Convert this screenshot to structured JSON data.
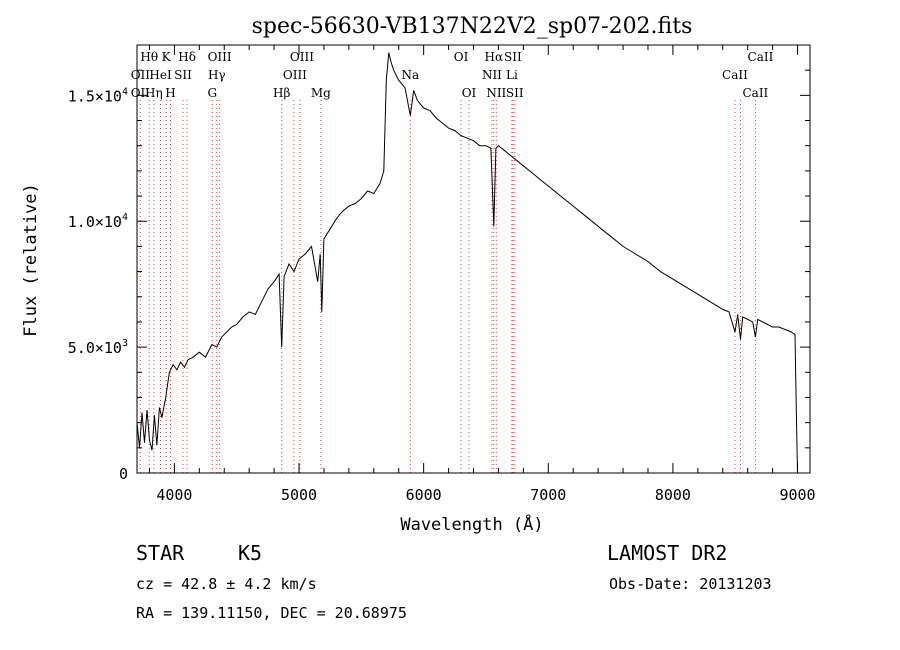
{
  "chart_data": {
    "type": "line",
    "title": "spec-56630-VB137N22V2_sp07-202.fits",
    "xlabel": "Wavelength (Å)",
    "ylabel": "Flux (relative)",
    "xlim": [
      3700,
      9100
    ],
    "ylim": [
      0,
      17000
    ],
    "x_ticks": [
      4000,
      5000,
      6000,
      7000,
      8000,
      9000
    ],
    "x_tick_labels": [
      "4000",
      "5000",
      "6000",
      "7000",
      "8000",
      "9000"
    ],
    "y_ticks": [
      0,
      5000,
      10000,
      15000
    ],
    "y_tick_labels": [
      {
        "mant": "0",
        "exp": ""
      },
      {
        "mant": "5.0×10",
        "exp": "3"
      },
      {
        "mant": "1.0×10",
        "exp": "4"
      },
      {
        "mant": "1.5×10",
        "exp": "4"
      }
    ],
    "series": [
      {
        "x": [
          3700,
          3720,
          3740,
          3760,
          3780,
          3800,
          3820,
          3840,
          3860,
          3880,
          3900,
          3930,
          3960,
          3990,
          4020,
          4050,
          4080,
          4110,
          4150,
          4200,
          4250,
          4300,
          4340,
          4380,
          4420,
          4460,
          4500,
          4550,
          4600,
          4650,
          4700,
          4750,
          4800,
          4840,
          4861,
          4880,
          4920,
          4960,
          5000,
          5050,
          5100,
          5150,
          5170,
          5183,
          5200,
          5250,
          5300,
          5350,
          5400,
          5450,
          5500,
          5550,
          5600,
          5650,
          5680,
          5700,
          5720,
          5740,
          5760,
          5800,
          5850,
          5893,
          5920,
          5950,
          6000,
          6050,
          6100,
          6150,
          6200,
          6250,
          6300,
          6350,
          6400,
          6450,
          6500,
          6540,
          6563,
          6580,
          6600,
          6650,
          6700,
          6750,
          6800,
          6850,
          6900,
          6950,
          7000,
          7100,
          7200,
          7300,
          7400,
          7500,
          7600,
          7700,
          7800,
          7900,
          8000,
          8100,
          8200,
          8300,
          8400,
          8450,
          8498,
          8520,
          8542,
          8560,
          8600,
          8640,
          8662,
          8680,
          8720,
          8760,
          8800,
          8850,
          8900,
          8950,
          8980,
          8990,
          9000
        ],
        "y": [
          2000,
          1000,
          2400,
          1200,
          2500,
          1300,
          900,
          2300,
          1100,
          2600,
          2200,
          3000,
          4000,
          4300,
          4100,
          4400,
          4200,
          4500,
          4600,
          4800,
          4600,
          5100,
          5000,
          5400,
          5600,
          5800,
          5900,
          6200,
          6400,
          6300,
          6800,
          7300,
          7600,
          7900,
          5000,
          7800,
          8300,
          8000,
          8500,
          8700,
          9000,
          7600,
          8700,
          6400,
          9300,
          9700,
          10100,
          10400,
          10600,
          10700,
          10900,
          11200,
          11100,
          11500,
          12000,
          15600,
          16700,
          16300,
          16000,
          15600,
          15300,
          14200,
          15200,
          14800,
          14500,
          14400,
          14100,
          13900,
          13700,
          13600,
          13400,
          13300,
          13200,
          13000,
          13000,
          12900,
          9800,
          12900,
          13000,
          12800,
          12600,
          12400,
          12200,
          12000,
          11800,
          11600,
          11400,
          11000,
          10600,
          10200,
          9800,
          9400,
          9000,
          8700,
          8400,
          8000,
          7700,
          7400,
          7100,
          6800,
          6500,
          6400,
          5600,
          6300,
          5300,
          6200,
          6100,
          6000,
          5400,
          6100,
          6000,
          5900,
          5800,
          5800,
          5700,
          5600,
          5500,
          2500,
          0
        ]
      }
    ],
    "lines": [
      {
        "label": "Hθ",
        "x": 3798,
        "row": 0,
        "offset": 0
      },
      {
        "label": "K",
        "x": 3934,
        "row": 0,
        "offset": 0
      },
      {
        "label": "Hδ",
        "x": 4102,
        "row": 0,
        "offset": 0
      },
      {
        "label": "OIII",
        "x": 4363,
        "row": 0,
        "offset": 0
      },
      {
        "label": "OIII",
        "x": 4959,
        "row": 0,
        "offset": 8
      },
      {
        "label": "OI",
        "x": 6300,
        "row": 0,
        "offset": 0
      },
      {
        "label": "Hα",
        "x": 6563,
        "row": 0,
        "offset": 0
      },
      {
        "label": "SII",
        "x": 6716,
        "row": 0,
        "offset": 0
      },
      {
        "label": "CaII",
        "x": 8542,
        "row": 0,
        "offset": 20
      },
      {
        "label": "OII",
        "x": 3727,
        "row": 1,
        "offset": 0
      },
      {
        "label": "HeI",
        "x": 3889,
        "row": 1,
        "offset": 0
      },
      {
        "label": "SII",
        "x": 4069,
        "row": 1,
        "offset": 0
      },
      {
        "label": "Hγ",
        "x": 4340,
        "row": 1,
        "offset": 0
      },
      {
        "label": "OIII",
        "x": 5007,
        "row": 1,
        "offset": -5
      },
      {
        "label": "Na",
        "x": 5893,
        "row": 1,
        "offset": 0
      },
      {
        "label": "NII",
        "x": 6548,
        "row": 1,
        "offset": 0
      },
      {
        "label": "Li",
        "x": 6708,
        "row": 1,
        "offset": 0
      },
      {
        "label": "CaII",
        "x": 8498,
        "row": 1,
        "offset": 0
      },
      {
        "label": "OII",
        "x": 3727,
        "row": 2,
        "offset": 0
      },
      {
        "label": "Hη",
        "x": 3835,
        "row": 2,
        "offset": 0
      },
      {
        "label": "H",
        "x": 3969,
        "row": 2,
        "offset": 0
      },
      {
        "label": "G",
        "x": 4304,
        "row": 2,
        "offset": 0
      },
      {
        "label": "Hβ",
        "x": 4861,
        "row": 2,
        "offset": 0
      },
      {
        "label": "Mg",
        "x": 5175,
        "row": 2,
        "offset": 0
      },
      {
        "label": "OI",
        "x": 6364,
        "row": 2,
        "offset": 0
      },
      {
        "label": "NII",
        "x": 6583,
        "row": 2,
        "offset": 0
      },
      {
        "label": "SII",
        "x": 6731,
        "row": 2,
        "offset": 0
      },
      {
        "label": "CaII",
        "x": 8662,
        "row": 2,
        "offset": 0
      }
    ]
  },
  "info": {
    "class": "STAR",
    "subclass": "K5",
    "survey": "LAMOST DR2",
    "cz": "cz = 42.8 ± 4.2 km/s",
    "obs_date": "Obs-Date: 20131203",
    "radec": "RA = 139.11150, DEC =  20.68975"
  }
}
